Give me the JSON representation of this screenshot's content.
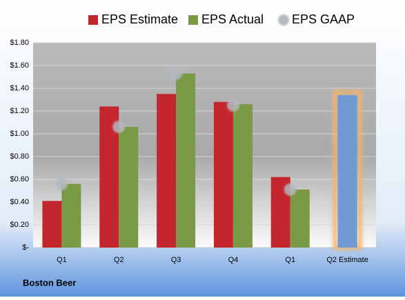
{
  "chart_data": {
    "type": "bar",
    "categories": [
      "Q1",
      "Q2",
      "Q3",
      "Q4",
      "Q1",
      "Q2 Estimate"
    ],
    "series": [
      {
        "name": "EPS Estimate",
        "color": "#c4262e",
        "values": [
          0.41,
          1.24,
          1.35,
          1.28,
          0.62,
          1.34
        ],
        "colors": [
          "#c4262e",
          "#c4262e",
          "#c4262e",
          "#c4262e",
          "#c4262e",
          "#6f9ad4"
        ],
        "outline_colors": [
          null,
          null,
          null,
          null,
          null,
          "#f4b26b"
        ]
      },
      {
        "name": "EPS Actual",
        "color": "#7a9a45",
        "values": [
          0.56,
          1.06,
          1.53,
          1.26,
          0.51,
          null
        ]
      },
      {
        "name": "EPS GAAP",
        "color": "#b4b8bf",
        "marker": "circle",
        "values": [
          0.56,
          1.06,
          1.53,
          1.25,
          0.51,
          null
        ]
      }
    ],
    "ylim": [
      0,
      1.8
    ],
    "yticks": [
      {
        "value": 0,
        "label": "$-"
      },
      {
        "value": 0.2,
        "label": "$0.20"
      },
      {
        "value": 0.4,
        "label": "$0.40"
      },
      {
        "value": 0.6,
        "label": "$0.60"
      },
      {
        "value": 0.8,
        "label": "$0.80"
      },
      {
        "value": 1.0,
        "label": "$1.00"
      },
      {
        "value": 1.2,
        "label": "$1.20"
      },
      {
        "value": 1.4,
        "label": "$1.40"
      },
      {
        "value": 1.6,
        "label": "$1.60"
      },
      {
        "value": 1.8,
        "label": "$1.80"
      }
    ],
    "grid": true,
    "legend": "top",
    "footer": "Boston Beer"
  }
}
